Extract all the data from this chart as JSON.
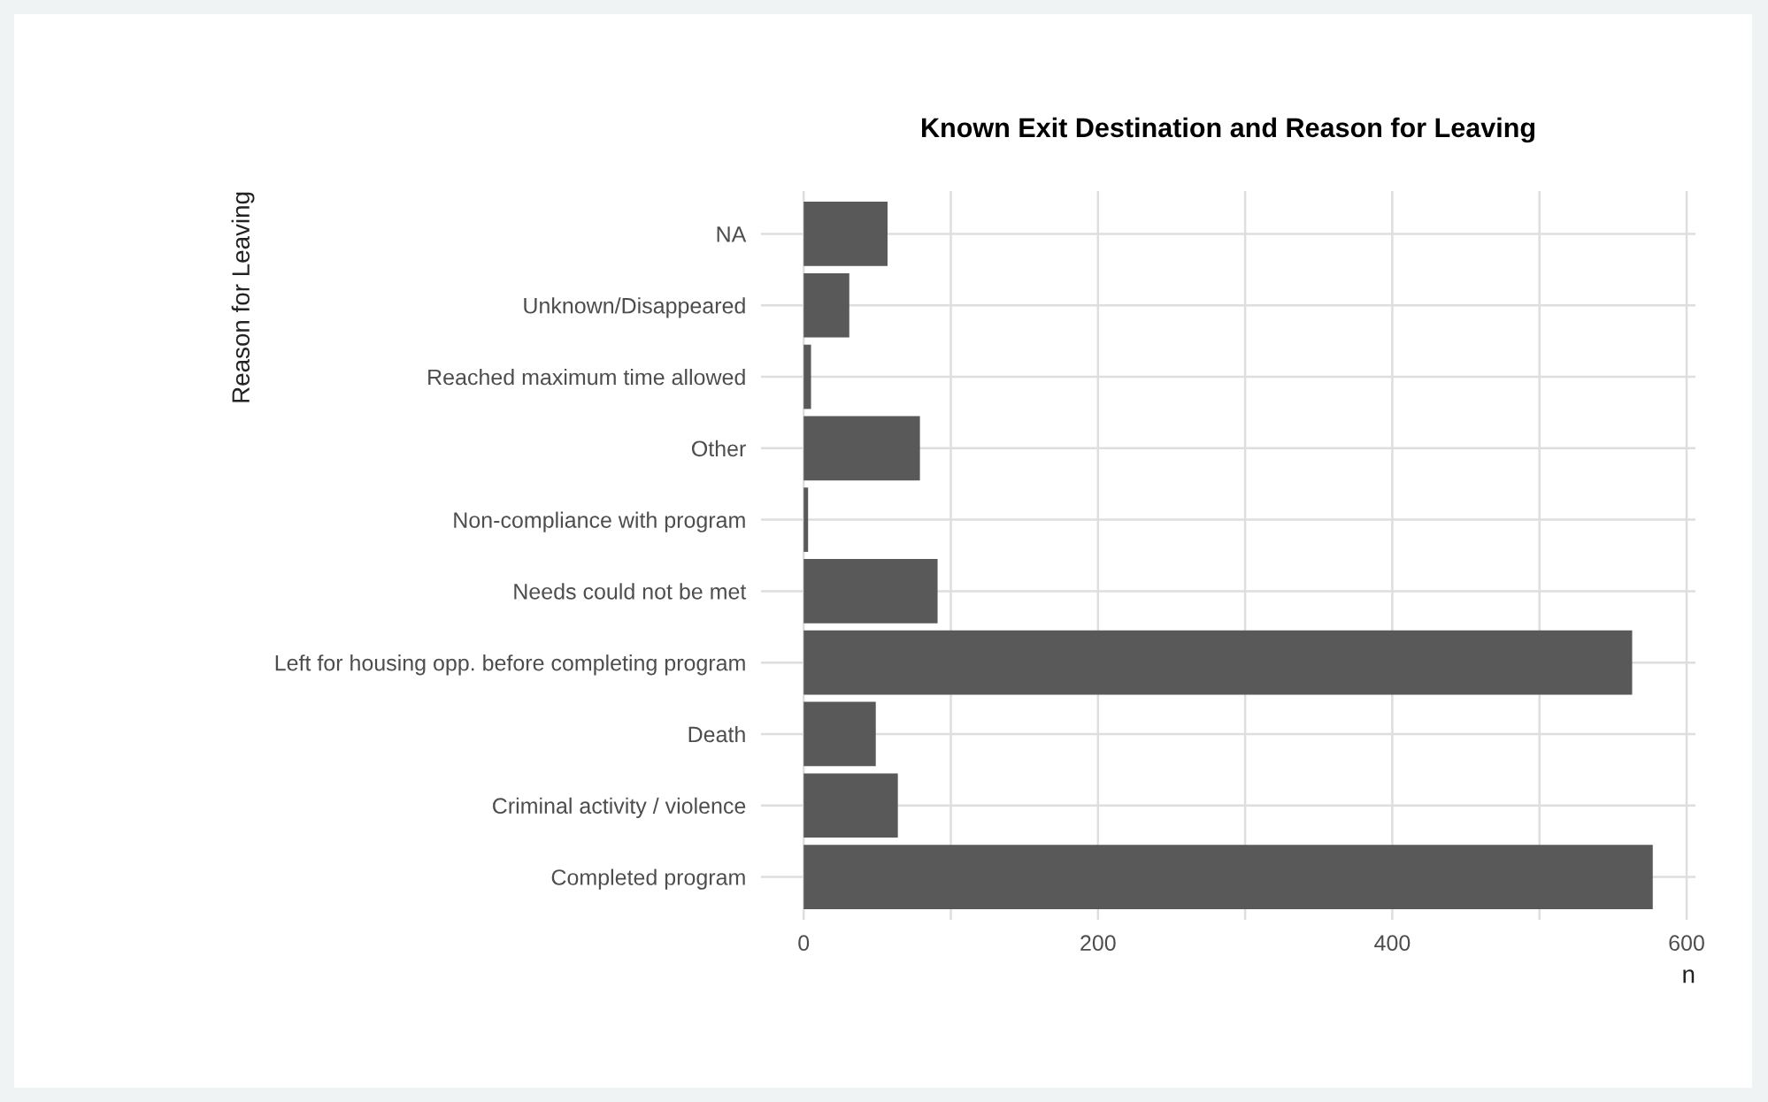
{
  "chart_data": {
    "type": "bar",
    "orientation": "horizontal",
    "title": "Known Exit Destination and Reason for Leaving",
    "xlabel": "n",
    "ylabel": "Reason for Leaving",
    "categories": [
      "NA",
      "Unknown/Disappeared",
      "Reached maximum time allowed",
      "Other",
      "Non-compliance with program",
      "Needs could not be met",
      "Left for housing opp. before completing program",
      "Death",
      "Criminal activity / violence",
      "Completed program"
    ],
    "values": [
      57,
      31,
      5,
      79,
      3,
      91,
      563,
      49,
      64,
      577
    ],
    "color": "#595959",
    "xlim": [
      -29,
      606
    ],
    "xticks": [
      0,
      {
        "value": 100,
        "label": null
      },
      200,
      {
        "value": 300,
        "label": null
      },
      400,
      {
        "value": 500,
        "label": null
      },
      600
    ],
    "grid": true
  }
}
